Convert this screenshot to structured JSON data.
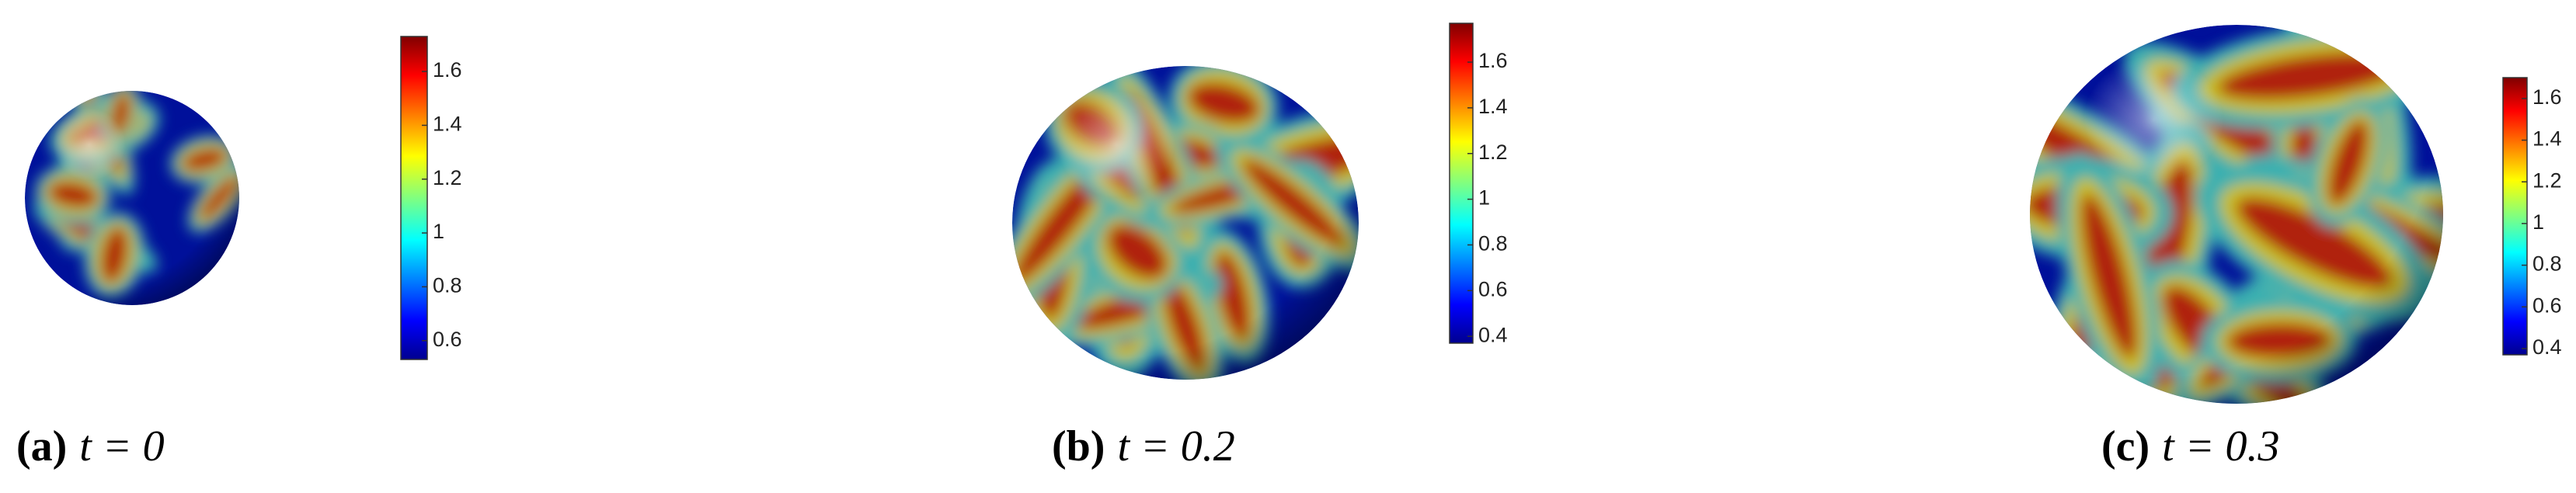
{
  "panels": [
    {
      "label": "(a)",
      "caption": "t = 0",
      "colorbar": {
        "lim": [
          0.53,
          1.73
        ],
        "ticks": [
          0.6,
          0.8,
          1,
          1.2,
          1.4,
          1.6
        ]
      }
    },
    {
      "label": "(b)",
      "caption": "t = 0.2",
      "colorbar": {
        "lim": [
          0.37,
          1.77
        ],
        "ticks": [
          0.4,
          0.6,
          0.8,
          1,
          1.2,
          1.4,
          1.6
        ]
      }
    },
    {
      "label": "(c)",
      "caption": "t = 0.3",
      "colorbar": {
        "lim": [
          0.37,
          1.7
        ],
        "ticks": [
          0.4,
          0.6,
          0.8,
          1,
          1.2,
          1.4,
          1.6
        ]
      }
    }
  ]
}
